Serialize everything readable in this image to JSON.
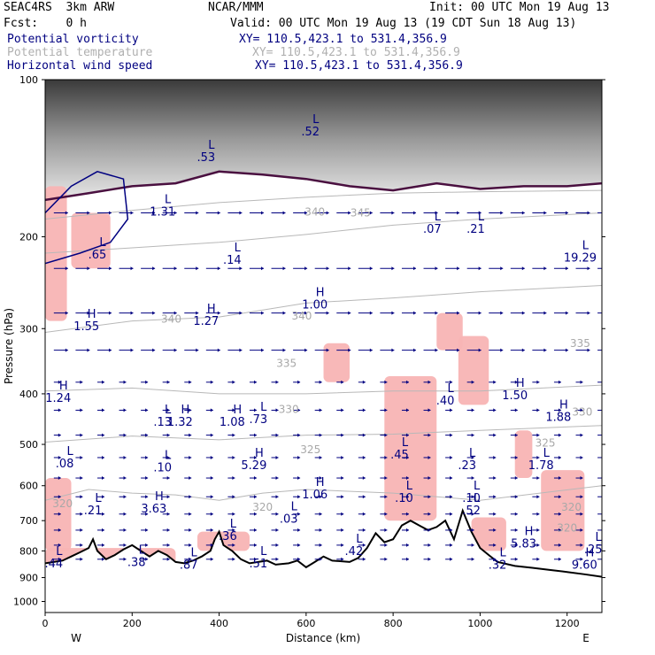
{
  "header": {
    "model": "SEAC4RS  3km ARW",
    "org": "NCAR/MMM",
    "init": "Init: 00 UTC Mon 19 Aug 13",
    "fcst": "Fcst:    0 h",
    "valid": "Valid: 00 UTC Mon 19 Aug 13 (19 CDT Sun 18 Aug 13)",
    "fields": [
      {
        "name": "Potential vorticity",
        "xy": "XY= 110.5,423.1 to 531.4,356.9",
        "color": "#000080"
      },
      {
        "name": "Potential temperature",
        "xy": "XY= 110.5,423.1 to 531.4,356.9",
        "color": "#b0b0b0"
      },
      {
        "name": "Horizontal wind speed",
        "xy": "XY= 110.5,423.1 to 531.4,356.9",
        "color": "#000080"
      }
    ]
  },
  "chart_data": {
    "type": "cross-section",
    "xlabel": "Distance (km)",
    "ylabel": "Pressure (hPa)",
    "xlim": [
      0,
      1280
    ],
    "ylim": [
      1050,
      100
    ],
    "y_scale": "log",
    "x_ticks": [
      "0",
      "200",
      "400",
      "600",
      "800",
      "1000",
      "1200"
    ],
    "y_ticks": [
      "100",
      "200",
      "300",
      "400",
      "500",
      "600",
      "700",
      "800",
      "900",
      "1000"
    ],
    "x_end_labels": {
      "left": "W",
      "right": "E"
    },
    "terrain_surface_hPa": [
      [
        0,
        845
      ],
      [
        40,
        835
      ],
      [
        60,
        820
      ],
      [
        80,
        805
      ],
      [
        100,
        790
      ],
      [
        110,
        760
      ],
      [
        120,
        800
      ],
      [
        140,
        830
      ],
      [
        160,
        815
      ],
      [
        180,
        795
      ],
      [
        200,
        780
      ],
      [
        220,
        800
      ],
      [
        240,
        820
      ],
      [
        260,
        800
      ],
      [
        280,
        815
      ],
      [
        300,
        840
      ],
      [
        320,
        845
      ],
      [
        340,
        835
      ],
      [
        360,
        820
      ],
      [
        380,
        800
      ],
      [
        390,
        760
      ],
      [
        400,
        735
      ],
      [
        410,
        780
      ],
      [
        430,
        800
      ],
      [
        450,
        830
      ],
      [
        470,
        845
      ],
      [
        490,
        840
      ],
      [
        510,
        835
      ],
      [
        530,
        850
      ],
      [
        560,
        845
      ],
      [
        580,
        835
      ],
      [
        600,
        860
      ],
      [
        620,
        840
      ],
      [
        640,
        820
      ],
      [
        660,
        835
      ],
      [
        700,
        840
      ],
      [
        720,
        825
      ],
      [
        740,
        790
      ],
      [
        760,
        740
      ],
      [
        780,
        770
      ],
      [
        800,
        760
      ],
      [
        820,
        715
      ],
      [
        840,
        700
      ],
      [
        860,
        715
      ],
      [
        880,
        730
      ],
      [
        900,
        720
      ],
      [
        920,
        700
      ],
      [
        940,
        760
      ],
      [
        960,
        670
      ],
      [
        980,
        735
      ],
      [
        1000,
        790
      ],
      [
        1020,
        815
      ],
      [
        1040,
        840
      ],
      [
        1080,
        855
      ],
      [
        1120,
        862
      ],
      [
        1160,
        870
      ],
      [
        1200,
        878
      ],
      [
        1240,
        887
      ],
      [
        1280,
        897
      ]
    ],
    "theta_contours_K": [
      {
        "label": "340",
        "pts": [
          [
            0,
            215
          ],
          [
            200,
            210
          ],
          [
            400,
            205
          ],
          [
            600,
            198
          ],
          [
            800,
            190
          ],
          [
            1000,
            185
          ],
          [
            1280,
            180
          ]
        ]
      },
      {
        "label": "345",
        "pts": [
          [
            0,
            185
          ],
          [
            200,
            178
          ],
          [
            400,
            172
          ],
          [
            600,
            168
          ],
          [
            800,
            165
          ],
          [
            1000,
            164
          ],
          [
            1280,
            163
          ]
        ]
      },
      {
        "label": "335",
        "pts": [
          [
            0,
            305
          ],
          [
            200,
            290
          ],
          [
            400,
            285
          ],
          [
            600,
            268
          ],
          [
            800,
            262
          ],
          [
            1000,
            255
          ],
          [
            1280,
            248
          ]
        ]
      },
      {
        "label": "330",
        "pts": [
          [
            0,
            395
          ],
          [
            200,
            390
          ],
          [
            400,
            400
          ],
          [
            600,
            400
          ],
          [
            800,
            395
          ],
          [
            1000,
            395
          ],
          [
            1280,
            385
          ]
        ]
      },
      {
        "label": "325",
        "pts": [
          [
            0,
            495
          ],
          [
            200,
            482
          ],
          [
            400,
            490
          ],
          [
            600,
            480
          ],
          [
            800,
            478
          ],
          [
            1000,
            470
          ],
          [
            1280,
            460
          ]
        ]
      },
      {
        "label": "320",
        "pts": [
          [
            0,
            640
          ],
          [
            100,
            610
          ],
          [
            200,
            620
          ],
          [
            300,
            625
          ],
          [
            400,
            640
          ],
          [
            500,
            620
          ],
          [
            600,
            610
          ],
          [
            800,
            620
          ],
          [
            1000,
            640
          ],
          [
            1280,
            600
          ]
        ]
      }
    ],
    "theta_labels": [
      {
        "text": "340",
        "x": 290,
        "p": 292
      },
      {
        "text": "345",
        "x": 725,
        "p": 183
      },
      {
        "text": "340",
        "x": 620,
        "p": 182
      },
      {
        "text": "340",
        "x": 590,
        "p": 288
      },
      {
        "text": "335",
        "x": 555,
        "p": 355
      },
      {
        "text": "335",
        "x": 1230,
        "p": 325
      },
      {
        "text": "330",
        "x": 560,
        "p": 435
      },
      {
        "text": "330",
        "x": 1235,
        "p": 440
      },
      {
        "text": "325",
        "x": 610,
        "p": 520
      },
      {
        "text": "325",
        "x": 1150,
        "p": 505
      },
      {
        "text": "320",
        "x": 40,
        "p": 660
      },
      {
        "text": "320",
        "x": 500,
        "p": 670
      },
      {
        "text": "320",
        "x": 1210,
        "p": 670
      },
      {
        "text": "320",
        "x": 1200,
        "p": 735
      }
    ],
    "pv_extrema": [
      {
        "kind": "H",
        "value": "1.55",
        "x": 95,
        "p": 295
      },
      {
        "kind": "L",
        "value": ".65",
        "x": 120,
        "p": 215
      },
      {
        "kind": "H",
        "value": "1.24",
        "x": 30,
        "p": 405
      },
      {
        "kind": "L",
        "value": ".08",
        "x": 45,
        "p": 540
      },
      {
        "kind": "L",
        "value": ".21",
        "x": 110,
        "p": 665
      },
      {
        "kind": "L",
        "value": "1.31",
        "x": 270,
        "p": 178
      },
      {
        "kind": "H",
        "value": "1.27",
        "x": 370,
        "p": 288
      },
      {
        "kind": "L",
        "value": ".14",
        "x": 430,
        "p": 220
      },
      {
        "kind": "L",
        "value": ".13",
        "x": 270,
        "p": 450
      },
      {
        "kind": "H",
        "value": "1.32",
        "x": 310,
        "p": 450
      },
      {
        "kind": "L",
        "value": ".10",
        "x": 270,
        "p": 550
      },
      {
        "kind": "H",
        "value": "3.63",
        "x": 250,
        "p": 660
      },
      {
        "kind": "H",
        "value": "1.08",
        "x": 430,
        "p": 450
      },
      {
        "kind": "L",
        "value": ".73",
        "x": 490,
        "p": 445
      },
      {
        "kind": "H",
        "value": "5.29",
        "x": 480,
        "p": 545
      },
      {
        "kind": "L",
        "value": ".36",
        "x": 420,
        "p": 745
      },
      {
        "kind": "L",
        "value": ".03",
        "x": 560,
        "p": 690
      },
      {
        "kind": "H",
        "value": "1.00",
        "x": 620,
        "p": 268
      },
      {
        "kind": "H",
        "value": "1.06",
        "x": 620,
        "p": 620
      },
      {
        "kind": "L",
        "value": ".42",
        "x": 710,
        "p": 795
      },
      {
        "kind": "L",
        "value": ".45",
        "x": 815,
        "p": 520
      },
      {
        "kind": "L",
        "value": ".10",
        "x": 825,
        "p": 630
      },
      {
        "kind": "L",
        "value": ".40",
        "x": 920,
        "p": 410
      },
      {
        "kind": "L",
        "value": ".07",
        "x": 890,
        "p": 192
      },
      {
        "kind": "L",
        "value": ".21",
        "x": 990,
        "p": 192
      },
      {
        "kind": "L",
        "value": ".23",
        "x": 970,
        "p": 545
      },
      {
        "kind": "L",
        "value": ".10",
        "x": 980,
        "p": 630
      },
      {
        "kind": "L",
        "value": ".52",
        "x": 980,
        "p": 665
      },
      {
        "kind": "H",
        "value": "1.50",
        "x": 1080,
        "p": 400
      },
      {
        "kind": "L",
        "value": "1.78",
        "x": 1140,
        "p": 545
      },
      {
        "kind": "H",
        "value": "1.88",
        "x": 1180,
        "p": 440
      },
      {
        "kind": "H",
        "value": "5.83",
        "x": 1100,
        "p": 770
      },
      {
        "kind": "L",
        "value": "19.29",
        "x": 1230,
        "p": 218
      },
      {
        "kind": "L",
        "value": ".25",
        "x": 1260,
        "p": 790
      },
      {
        "kind": "H",
        "value": "9.60",
        "x": 1240,
        "p": 845
      },
      {
        "kind": "L",
        "value": ".32",
        "x": 1040,
        "p": 845
      },
      {
        "kind": "L",
        "value": ".38",
        "x": 210,
        "p": 835
      },
      {
        "kind": "L",
        "value": ".87",
        "x": 330,
        "p": 845
      },
      {
        "kind": "L",
        "value": ".51",
        "x": 490,
        "p": 840
      },
      {
        "kind": "L",
        "value": ".44",
        "x": 20,
        "p": 840
      },
      {
        "kind": "L",
        "value": ".53",
        "x": 370,
        "p": 140
      },
      {
        "kind": "L",
        "value": ".52",
        "x": 610,
        "p": 125
      }
    ],
    "pink_regions": [
      {
        "x0": 0,
        "x1": 50,
        "p0": 160,
        "p1": 290
      },
      {
        "x0": 60,
        "x1": 150,
        "p0": 180,
        "p1": 230
      },
      {
        "x0": 0,
        "x1": 60,
        "p0": 580,
        "p1": 800
      },
      {
        "x0": 640,
        "x1": 700,
        "p0": 320,
        "p1": 380
      },
      {
        "x0": 780,
        "x1": 900,
        "p0": 370,
        "p1": 700
      },
      {
        "x0": 900,
        "x1": 960,
        "p0": 280,
        "p1": 330
      },
      {
        "x0": 950,
        "x1": 1020,
        "p0": 310,
        "p1": 420
      },
      {
        "x0": 1080,
        "x1": 1120,
        "p0": 470,
        "p1": 580
      },
      {
        "x0": 1140,
        "x1": 1240,
        "p0": 560,
        "p1": 800
      },
      {
        "x0": 0,
        "x1": 300,
        "p0": 790,
        "p1": 850
      },
      {
        "x0": 350,
        "x1": 470,
        "p0": 735,
        "p1": 800
      },
      {
        "x0": 980,
        "x1": 1060,
        "p0": 690,
        "p1": 800
      }
    ],
    "tropopause_hPa": [
      [
        0,
        170
      ],
      [
        100,
        165
      ],
      [
        200,
        160
      ],
      [
        300,
        158
      ],
      [
        400,
        150
      ],
      [
        500,
        152
      ],
      [
        600,
        155
      ],
      [
        700,
        160
      ],
      [
        800,
        163
      ],
      [
        900,
        158
      ],
      [
        1000,
        162
      ],
      [
        1100,
        160
      ],
      [
        1200,
        160
      ],
      [
        1280,
        158
      ]
    ],
    "wind_rows_hPa": [
      180,
      230,
      280,
      330,
      380,
      430,
      480,
      530,
      580,
      630,
      680,
      730,
      780,
      830
    ]
  }
}
